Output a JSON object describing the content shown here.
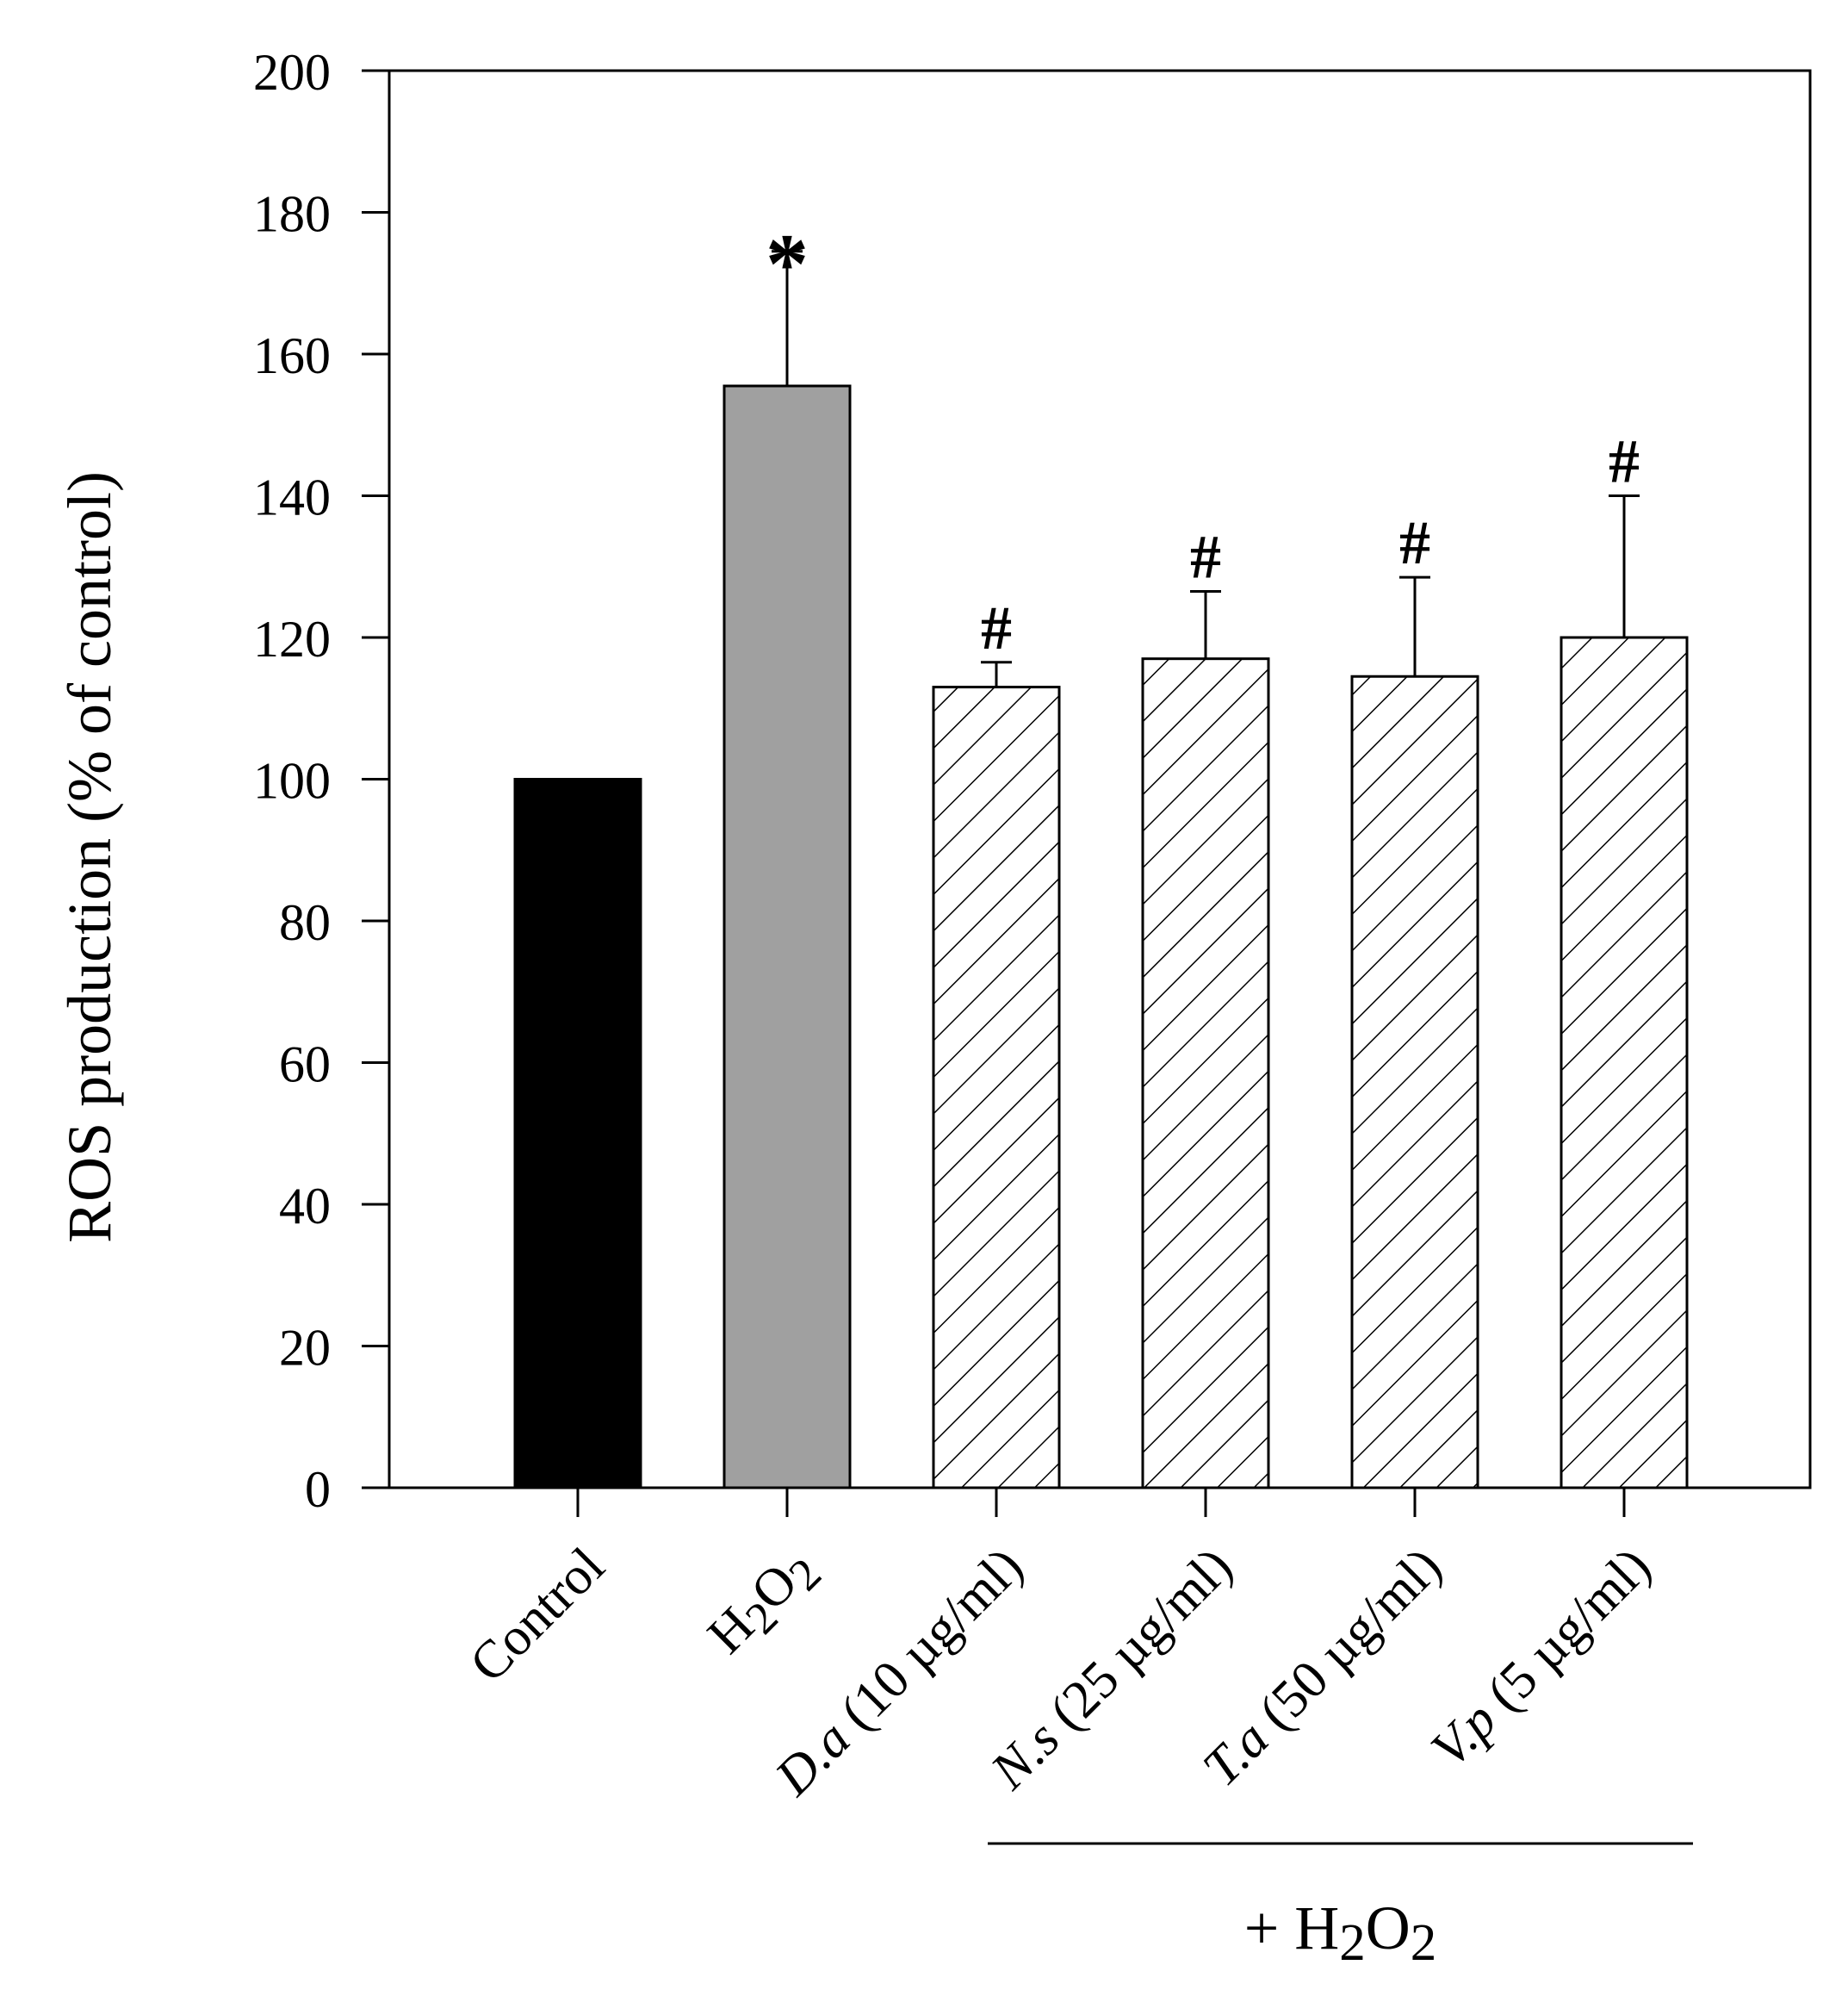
{
  "chart_data": {
    "type": "bar",
    "ylabel": "ROS production (% of control)",
    "ylim": [
      0,
      200
    ],
    "yticks": [
      0,
      20,
      40,
      60,
      80,
      100,
      120,
      140,
      160,
      180,
      200
    ],
    "categories": [
      {
        "id": "control",
        "parts": [
          {
            "text": "Control"
          }
        ]
      },
      {
        "id": "h2o2",
        "parts": [
          {
            "text": "H"
          },
          {
            "text": "2",
            "sub": true
          },
          {
            "text": "O"
          },
          {
            "text": "2",
            "sub": true
          }
        ]
      },
      {
        "id": "da",
        "parts": [
          {
            "text": "D.a",
            "italic": true
          },
          {
            "text": " (10 µg/ml)"
          }
        ]
      },
      {
        "id": "ns",
        "parts": [
          {
            "text": "N.s",
            "italic": true
          },
          {
            "text": " (25 µg/ml)"
          }
        ]
      },
      {
        "id": "ta",
        "parts": [
          {
            "text": "T.a",
            "italic": true
          },
          {
            "text": " (50 µg/ml)"
          }
        ]
      },
      {
        "id": "vp",
        "parts": [
          {
            "text": "V.p",
            "italic": true
          },
          {
            "text": " (5 µg/ml)"
          }
        ]
      }
    ],
    "values": [
      100,
      155.5,
      113,
      117,
      114.5,
      120
    ],
    "errors": [
      0,
      19,
      3.5,
      9.5,
      14,
      20
    ],
    "fills": [
      "solid-black",
      "solid-gray",
      "hatch",
      "hatch",
      "hatch",
      "hatch"
    ],
    "colors": {
      "black": "#000000",
      "gray": "#a0a0a0",
      "white": "#ffffff"
    },
    "annotations": [
      "",
      "*",
      "#",
      "#",
      "#",
      "#"
    ],
    "group_label": {
      "parts": [
        {
          "text": "+ H"
        },
        {
          "text": "2",
          "sub": true
        },
        {
          "text": "O"
        },
        {
          "text": "2",
          "sub": true
        }
      ],
      "applies_to": [
        "da",
        "ns",
        "ta",
        "vp"
      ]
    }
  }
}
